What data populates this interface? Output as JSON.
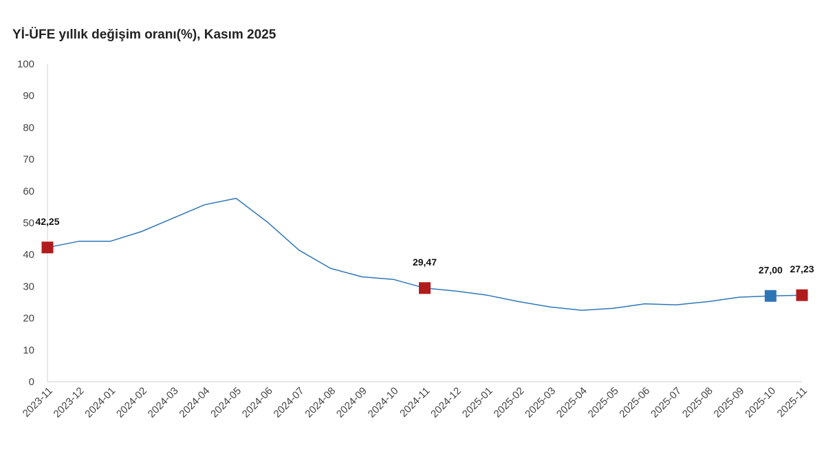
{
  "chart_data": {
    "type": "line",
    "title": "Yİ-ÜFE yıllık değişim oranı(%), Kasım 2025",
    "xlabel": "",
    "ylabel": "",
    "ylim": [
      0,
      100
    ],
    "yticks": [
      "0",
      "10",
      "20",
      "30",
      "40",
      "50",
      "60",
      "70",
      "80",
      "90",
      "100"
    ],
    "categories": [
      "2023-11",
      "2023-12",
      "2024-01",
      "2024-02",
      "2024-03",
      "2024-04",
      "2024-05",
      "2024-06",
      "2024-07",
      "2024-08",
      "2024-09",
      "2024-10",
      "2024-11",
      "2024-12",
      "2025-01",
      "2025-02",
      "2025-03",
      "2025-04",
      "2025-05",
      "2025-06",
      "2025-07",
      "2025-08",
      "2025-09",
      "2025-10",
      "2025-11"
    ],
    "series": [
      {
        "color": "#2e75b6",
        "values": [
          42.25,
          44.2,
          44.2,
          47.3,
          51.5,
          55.7,
          57.7,
          50.2,
          41.4,
          35.7,
          33.0,
          32.2,
          29.47,
          28.5,
          27.2,
          25.2,
          23.5,
          22.5,
          23.1,
          24.5,
          24.2,
          25.2,
          26.6,
          27.0,
          27.23
        ]
      }
    ],
    "highlights": [
      {
        "index": 0,
        "label": "42,25",
        "color": "#b01c1c"
      },
      {
        "index": 12,
        "label": "29,47",
        "color": "#b01c1c"
      },
      {
        "index": 23,
        "label": "27,00",
        "color": "#2e75b6"
      },
      {
        "index": 24,
        "label": "27,23",
        "color": "#b01c1c"
      }
    ],
    "grid": false,
    "legend": "none"
  }
}
